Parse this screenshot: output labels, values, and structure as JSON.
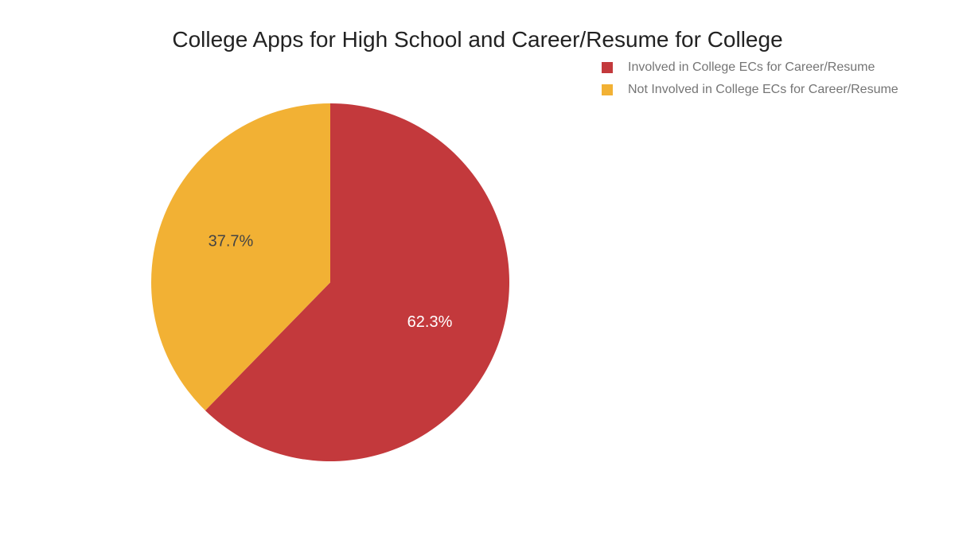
{
  "chart_data": {
    "type": "pie",
    "title": "College Apps for High School and Career/Resume for College",
    "legend_position": "top-right",
    "slices": [
      {
        "name": "Involved in College ECs for Career/Resume",
        "value": 62.3,
        "label": "62.3%",
        "color": "#c3393c",
        "label_color": "#ffffff"
      },
      {
        "name": "Not Involved in College ECs for Career/Resume",
        "value": 37.7,
        "label": "37.7%",
        "color": "#f2b134",
        "label_color": "#444444"
      }
    ]
  }
}
